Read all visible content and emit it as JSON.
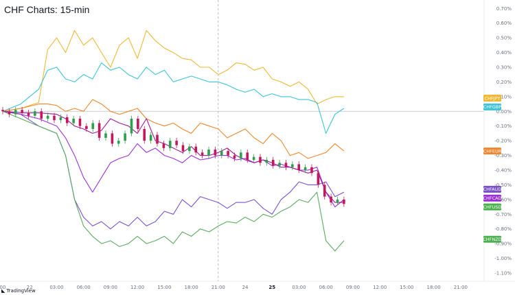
{
  "title": "CHF Charts: 15-min",
  "brand": {
    "mark": "◣",
    "name": "TradingView"
  },
  "chart_data": {
    "type": "line",
    "title": "CHF Charts: 15-min",
    "xlabel": "",
    "ylabel": "",
    "ylim": [
      -1.1,
      0.72
    ],
    "y_ticks": [
      "0.70%",
      "0.60%",
      "0.50%",
      "0.40%",
      "0.30%",
      "0.20%",
      "0.10%",
      "0.00%",
      "-0.10%",
      "-0.20%",
      "-0.30%",
      "-0.40%",
      "-0.50%",
      "-0.60%",
      "-0.70%",
      "-0.80%",
      "-0.90%",
      "-1.00%",
      "-1.10%"
    ],
    "y_tick_values": [
      0.7,
      0.6,
      0.5,
      0.4,
      0.3,
      0.2,
      0.1,
      0,
      -0.1,
      -0.2,
      -0.3,
      -0.4,
      -0.5,
      -0.6,
      -0.7,
      -0.8,
      -0.9,
      -1.0,
      -1.1
    ],
    "x_ticks": [
      {
        "label": "00",
        "bold": false
      },
      {
        "label": "22",
        "bold": false
      },
      {
        "label": "03:00",
        "bold": false
      },
      {
        "label": "06:00",
        "bold": false
      },
      {
        "label": "09:00",
        "bold": false
      },
      {
        "label": "12:00",
        "bold": false
      },
      {
        "label": "15:00",
        "bold": false
      },
      {
        "label": "18:00",
        "bold": false
      },
      {
        "label": "21:00",
        "bold": false
      },
      {
        "label": "24",
        "bold": false
      },
      {
        "label": "25",
        "bold": true
      },
      {
        "label": "03:00",
        "bold": false
      },
      {
        "label": "06:00",
        "bold": false
      },
      {
        "label": "09:00",
        "bold": false
      },
      {
        "label": "12:00",
        "bold": false
      },
      {
        "label": "15:00",
        "bold": false
      },
      {
        "label": "18:00",
        "bold": false
      },
      {
        "label": "21:00",
        "bold": false
      }
    ],
    "x_tick_hours": [
      0,
      3,
      6,
      9,
      12,
      15,
      18,
      21,
      24,
      27,
      30,
      33,
      36,
      39,
      42,
      45,
      48,
      51
    ],
    "x_range_hours": [
      0,
      53
    ],
    "grid": false,
    "zero_line": true,
    "crosshair_hour": 24,
    "series": [
      {
        "name": "CHFJPY",
        "color": "#f0b833",
        "x": [
          0,
          2,
          4,
          5,
          6,
          7,
          8,
          9,
          10,
          11,
          12,
          13,
          14,
          15,
          16,
          17,
          18,
          19,
          20,
          21,
          22,
          23,
          24,
          25,
          26,
          27,
          28,
          29,
          30,
          31,
          32,
          33,
          34,
          35,
          36,
          37,
          38
        ],
        "y": [
          0.0,
          0.02,
          0.06,
          0.42,
          0.5,
          0.4,
          0.55,
          0.45,
          0.5,
          0.4,
          0.3,
          0.45,
          0.5,
          0.36,
          0.55,
          0.48,
          0.43,
          0.4,
          0.36,
          0.35,
          0.3,
          0.3,
          0.25,
          0.28,
          0.33,
          0.32,
          0.28,
          0.3,
          0.22,
          0.2,
          0.17,
          0.2,
          0.15,
          0.05,
          0.08,
          0.1,
          0.1
        ]
      },
      {
        "name": "CHFGBP",
        "color": "#3cc3d6",
        "x": [
          0,
          2,
          4,
          5,
          6,
          7,
          8,
          9,
          10,
          11,
          12,
          13,
          14,
          15,
          16,
          17,
          18,
          19,
          20,
          21,
          22,
          23,
          24,
          25,
          26,
          27,
          28,
          29,
          30,
          31,
          32,
          33,
          34,
          35,
          36,
          37,
          38
        ],
        "y": [
          0.0,
          0.05,
          0.15,
          0.28,
          0.3,
          0.22,
          0.2,
          0.25,
          0.22,
          0.33,
          0.28,
          0.3,
          0.25,
          0.22,
          0.3,
          0.25,
          0.28,
          0.2,
          0.22,
          0.24,
          0.22,
          0.2,
          0.2,
          0.18,
          0.15,
          0.13,
          0.15,
          0.1,
          0.12,
          0.1,
          0.1,
          0.08,
          0.08,
          0.06,
          -0.15,
          -0.02,
          0.02
        ]
      },
      {
        "name": "CHFEUR",
        "color": "#f0862c",
        "x": [
          0,
          2,
          4,
          5,
          6,
          7,
          8,
          9,
          10,
          11,
          12,
          13,
          14,
          15,
          16,
          17,
          18,
          19,
          20,
          21,
          22,
          23,
          24,
          25,
          26,
          27,
          28,
          29,
          30,
          31,
          32,
          33,
          34,
          35,
          36,
          37,
          38
        ],
        "y": [
          0.0,
          0.02,
          0.05,
          0.05,
          0.04,
          0.0,
          0.02,
          0.0,
          0.08,
          0.05,
          0.0,
          -0.02,
          0.0,
          0.02,
          -0.05,
          -0.08,
          -0.1,
          -0.08,
          -0.12,
          -0.15,
          -0.08,
          -0.1,
          -0.12,
          -0.18,
          -0.15,
          -0.12,
          -0.18,
          -0.22,
          -0.15,
          -0.2,
          -0.3,
          -0.28,
          -0.32,
          -0.3,
          -0.28,
          -0.22,
          -0.27
        ]
      },
      {
        "name": "CHFAUD",
        "color": "#7b4fc9",
        "x": [
          0,
          2,
          4,
          6,
          7,
          8,
          9,
          10,
          11,
          12,
          13,
          14,
          15,
          16,
          17,
          18,
          19,
          20,
          21,
          22,
          23,
          24,
          25,
          26,
          27,
          28,
          29,
          30,
          31,
          32,
          33,
          34,
          35,
          36,
          37,
          38
        ],
        "y": [
          0.0,
          -0.02,
          -0.1,
          -0.15,
          -0.3,
          -0.6,
          -0.72,
          -0.78,
          -0.75,
          -0.8,
          -0.75,
          -0.78,
          -0.72,
          -0.78,
          -0.75,
          -0.68,
          -0.7,
          -0.6,
          -0.65,
          -0.58,
          -0.6,
          -0.62,
          -0.66,
          -0.62,
          -0.62,
          -0.6,
          -0.66,
          -0.7,
          -0.6,
          -0.55,
          -0.48,
          -0.5,
          -0.5,
          -0.48,
          -0.58,
          -0.55
        ]
      },
      {
        "name": "CHFCAD",
        "color": "#9b2fd6",
        "x": [
          0,
          2,
          4,
          6,
          7,
          8,
          9,
          10,
          11,
          12,
          13,
          14,
          15,
          16,
          17,
          18,
          19,
          20,
          21,
          22,
          23,
          24,
          25,
          26,
          27,
          28,
          29,
          30,
          31,
          32,
          33,
          34,
          35,
          36,
          37,
          38
        ],
        "y": [
          0.0,
          -0.02,
          -0.05,
          -0.1,
          -0.18,
          -0.3,
          -0.45,
          -0.55,
          -0.45,
          -0.35,
          -0.32,
          -0.3,
          -0.22,
          -0.28,
          -0.25,
          -0.3,
          -0.32,
          -0.35,
          -0.3,
          -0.33,
          -0.32,
          -0.3,
          -0.3,
          -0.33,
          -0.32,
          -0.35,
          -0.33,
          -0.37,
          -0.36,
          -0.38,
          -0.4,
          -0.4,
          -0.38,
          -0.55,
          -0.65,
          -0.6
        ]
      },
      {
        "name": "CHFUSD",
        "color": "#a0189a",
        "x": [
          0,
          2,
          4,
          6,
          7,
          8,
          9,
          10,
          11,
          12,
          13,
          14,
          15,
          16,
          17,
          18,
          19,
          20,
          21,
          22,
          23,
          24,
          25,
          26,
          27,
          28,
          29,
          30,
          31,
          32,
          33,
          34,
          35,
          36,
          37,
          38
        ],
        "y": [
          0.0,
          -0.01,
          -0.01,
          -0.02,
          -0.05,
          -0.1,
          -0.12,
          -0.15,
          -0.13,
          -0.05,
          -0.08,
          -0.1,
          -0.15,
          -0.05,
          -0.2,
          -0.22,
          -0.25,
          -0.28,
          -0.24,
          -0.3,
          -0.3,
          -0.28,
          -0.25,
          -0.3,
          -0.33,
          -0.35,
          -0.33,
          -0.35,
          -0.38,
          -0.38,
          -0.4,
          -0.42,
          -0.4,
          -0.55,
          -0.62,
          -0.62
        ]
      },
      {
        "name": "CHFNZD",
        "color": "#5aab5e",
        "x": [
          0,
          2,
          4,
          6,
          7,
          8,
          9,
          10,
          11,
          12,
          13,
          14,
          15,
          16,
          17,
          18,
          19,
          20,
          21,
          22,
          23,
          24,
          25,
          26,
          27,
          28,
          29,
          30,
          31,
          32,
          33,
          34,
          35,
          36,
          37,
          38
        ],
        "y": [
          0.0,
          -0.05,
          -0.1,
          -0.15,
          -0.3,
          -0.6,
          -0.78,
          -0.85,
          -0.9,
          -0.88,
          -0.92,
          -0.9,
          -0.85,
          -0.9,
          -0.88,
          -0.85,
          -0.9,
          -0.82,
          -0.85,
          -0.8,
          -0.82,
          -0.78,
          -0.75,
          -0.76,
          -0.72,
          -0.75,
          -0.7,
          -0.72,
          -0.68,
          -0.65,
          -0.6,
          -0.62,
          -0.55,
          -0.88,
          -0.95,
          -0.88
        ]
      }
    ],
    "candles": {
      "up_color": "#2e9e4f",
      "down_color": "#c2185b",
      "close": [
        0.0,
        -0.02,
        0.01,
        -0.01,
        -0.03,
        0.0,
        -0.05,
        -0.03,
        -0.06,
        -0.04,
        -0.08,
        -0.05,
        -0.1,
        -0.12,
        -0.08,
        -0.18,
        -0.15,
        -0.22,
        -0.2,
        -0.15,
        -0.05,
        -0.12,
        -0.2,
        -0.16,
        -0.22,
        -0.25,
        -0.2,
        -0.23,
        -0.27,
        -0.24,
        -0.28,
        -0.3,
        -0.26,
        -0.3,
        -0.27,
        -0.3,
        -0.32,
        -0.28,
        -0.33,
        -0.31,
        -0.35,
        -0.33,
        -0.37,
        -0.35,
        -0.38,
        -0.36,
        -0.4,
        -0.38,
        -0.42,
        -0.5,
        -0.58,
        -0.62,
        -0.6,
        -0.63
      ]
    },
    "tags": [
      {
        "label": "CHFJPY",
        "color": "#f0b833",
        "value": 0.09
      },
      {
        "label": "CHFGBP",
        "color": "#3cc3d6",
        "value": 0.03
      },
      {
        "label": "CHFEUR",
        "color": "#f0862c",
        "value": -0.27
      },
      {
        "label": "CHFAUD",
        "color": "#7b4fc9",
        "value": -0.53
      },
      {
        "label": "CHFCAD",
        "color": "#9b2fd6",
        "value": -0.59
      },
      {
        "label": "CHFUSD",
        "color": "#4cb050",
        "value": -0.65
      },
      {
        "label": "CHFNZD",
        "color": "#4cb050",
        "value": -0.87
      }
    ]
  }
}
